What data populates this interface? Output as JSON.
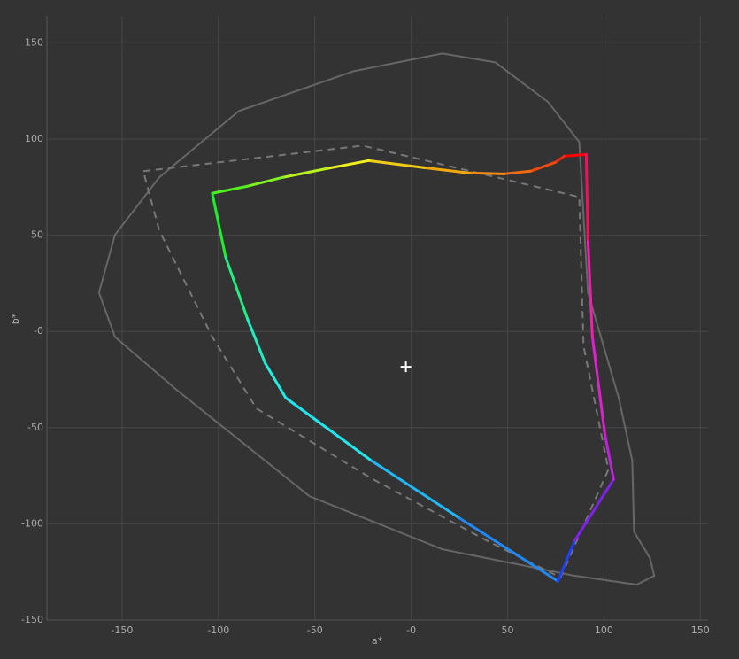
{
  "chart_data": {
    "type": "line",
    "xlabel": "a*",
    "ylabel": "b*",
    "xlim": [
      -189,
      154
    ],
    "ylim": [
      -150,
      164
    ],
    "xticks": [
      -150,
      -100,
      -50,
      {
        "value": 0,
        "label": "-0"
      },
      50,
      100,
      150
    ],
    "yticks": [
      -150,
      -100,
      -50,
      {
        "value": 0,
        "label": "-0"
      },
      50,
      100,
      150
    ],
    "grid": true,
    "series": [
      {
        "color": "#666666",
        "style": "solid",
        "x": [
          -162,
          -153.7,
          -130.7,
          -89.4,
          -29.8,
          16.1,
          43.6,
          71.1,
          87.2,
          91.7,
          107.8,
          114.7,
          115.6,
          123.9,
          126.1,
          117,
          84.9,
          16.1,
          -52.8,
          -121.6,
          -153.7,
          -162
        ],
        "values": [
          20.2,
          50.2,
          80.1,
          114.6,
          135.3,
          144.5,
          139.9,
          119.2,
          98.5,
          20.2,
          -35,
          -67.2,
          -104,
          -117.8,
          -127,
          -131.6,
          -127,
          -113.2,
          -85.6,
          -30.4,
          -2.8,
          20.2
        ]
      },
      {
        "color": "#777777",
        "style": "dashed",
        "x": [
          -139,
          -25.2,
          87.2,
          89.4,
          102.3,
          77.5,
          39,
          -20.6,
          -80.3,
          -103.2,
          -130.7,
          -139
        ],
        "values": [
          83.3,
          96.6,
          69.9,
          -7.4,
          -71.8,
          -127.9,
          -108.6,
          -76.4,
          -40,
          -2.8,
          52.5,
          83.3
        ]
      },
      {
        "style": "gradient",
        "x": [
          90.8,
          79.4,
          74.8,
          61.9,
          48.2,
          29.8,
          6.9,
          -22.0,
          -43.6,
          -66.5,
          -84.9,
          -103.2,
          -96.3,
          -84.9,
          -75.7,
          -65.1,
          -20.6,
          25.2,
          76.1,
          84.9,
          105.0,
          100.5,
          94.0,
          91.7,
          90.8
        ],
        "values": [
          92.0,
          91.1,
          87.9,
          83.3,
          81.9,
          82.4,
          85.1,
          88.8,
          84.7,
          80.1,
          75.5,
          71.8,
          38.7,
          6.4,
          -16.6,
          -34.5,
          -67.2,
          -97.1,
          -129.8,
          -108.6,
          -76.9,
          -53.4,
          -2.8,
          47.9,
          92.0
        ],
        "colors": [
          "#ff0000",
          "#f02a10",
          "#ee4a10",
          "#f06a10",
          "#f08a10",
          "#f0aa10",
          "#f0cc18",
          "#f0f020",
          "#b8f020",
          "#80f020",
          "#50f020",
          "#20ee30",
          "#20ee80",
          "#20eec0",
          "#20eee0",
          "#20e8f0",
          "#20b8f8",
          "#2088f8",
          "#2040ff",
          "#8020f0",
          "#c020e0",
          "#e020d0",
          "#f020b0",
          "#f01060",
          "#ff0000"
        ]
      }
    ],
    "white_point": {
      "x": -2.75,
      "value": -18.4,
      "color": "#ffffff"
    }
  }
}
